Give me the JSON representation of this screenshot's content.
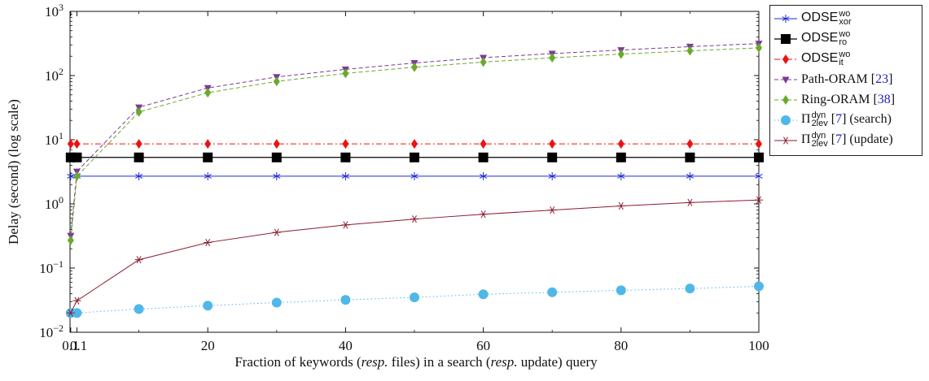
{
  "chart_data": {
    "type": "line",
    "title": "",
    "xlabel": {
      "pre": "Fraction of keywords (",
      "it1": "resp.",
      "mid": " files) in a search (",
      "it2": "resp.",
      "post": " update) query"
    },
    "ylabel": "Delay (second) (log scale)",
    "yscale": "log",
    "ylim": [
      0.01,
      1000
    ],
    "xlim": [
      0,
      100
    ],
    "x_ticks": [
      {
        "value": 0.1,
        "label": "0.1"
      },
      {
        "value": 20,
        "label": "20"
      },
      {
        "value": 40,
        "label": "40"
      },
      {
        "value": 60,
        "label": "60"
      },
      {
        "value": 80,
        "label": "80"
      },
      {
        "value": 100,
        "label": "100"
      }
    ],
    "x_tick_extra": {
      "value": 1,
      "label": "0.1"
    },
    "y_ticks": [
      {
        "value": 0.01,
        "base": "10",
        "exp": "−2"
      },
      {
        "value": 0.1,
        "base": "10",
        "exp": "−1"
      },
      {
        "value": 1,
        "base": "10",
        "exp": "0"
      },
      {
        "value": 10,
        "base": "10",
        "exp": "1"
      },
      {
        "value": 100,
        "base": "10",
        "exp": "2"
      },
      {
        "value": 1000,
        "base": "10",
        "exp": "3"
      }
    ],
    "legend_position": "outside-right",
    "series": [
      {
        "key": "xor",
        "color": "#1f2bd6",
        "marker": "asterisk",
        "dash": "",
        "width": 1,
        "label": {
          "main": "ODSE",
          "sup": "wo",
          "sub": "xor"
        },
        "x": [
          0.1,
          1,
          10,
          20,
          30,
          40,
          50,
          60,
          70,
          80,
          90,
          100
        ],
        "y": [
          2.7,
          2.7,
          2.7,
          2.7,
          2.7,
          2.7,
          2.7,
          2.7,
          2.7,
          2.7,
          2.7,
          2.7
        ]
      },
      {
        "key": "ro",
        "color": "#000000",
        "marker": "square",
        "dash": "",
        "width": 1.3,
        "label": {
          "main": "ODSE",
          "sup": "wo",
          "sub": "ro"
        },
        "x": [
          0.1,
          1,
          10,
          20,
          30,
          40,
          50,
          60,
          70,
          80,
          90,
          100
        ],
        "y": [
          5.3,
          5.3,
          5.3,
          5.3,
          5.3,
          5.3,
          5.3,
          5.3,
          5.3,
          5.3,
          5.3,
          5.3
        ]
      },
      {
        "key": "it",
        "color": "#ee1111",
        "marker": "diamond",
        "dash": "7,3,2,3",
        "width": 1,
        "label": {
          "main": "ODSE",
          "sup": "wo",
          "sub": "it"
        },
        "x": [
          0.1,
          1,
          10,
          20,
          30,
          40,
          50,
          60,
          70,
          80,
          90,
          100
        ],
        "y": [
          8.6,
          8.6,
          8.6,
          8.6,
          8.6,
          8.6,
          8.6,
          8.6,
          8.6,
          8.6,
          8.6,
          8.6
        ]
      },
      {
        "key": "path",
        "color": "#7b3a96",
        "marker": "triangle-down",
        "dash": "5,3",
        "width": 1,
        "label": {
          "main": "Path-ORAM [",
          "cite": "23",
          "post": "]"
        },
        "x": [
          0.1,
          1,
          10,
          20,
          30,
          40,
          50,
          60,
          70,
          80,
          90,
          100
        ],
        "y": [
          0.32,
          3.2,
          32,
          64,
          95,
          125,
          157,
          190,
          220,
          250,
          282,
          315
        ]
      },
      {
        "key": "ring",
        "color": "#6aaa2a",
        "marker": "diamond",
        "dash": "5,3",
        "width": 1,
        "label": {
          "main": "Ring-ORAM [",
          "cite": "38",
          "post": "]"
        },
        "x": [
          0.1,
          1,
          10,
          20,
          30,
          40,
          50,
          60,
          70,
          80,
          90,
          100
        ],
        "y": [
          0.27,
          2.7,
          27,
          54,
          81,
          108,
          135,
          162,
          189,
          216,
          243,
          270
        ]
      },
      {
        "key": "pi_search",
        "color": "#4fb8e8",
        "marker": "circle",
        "dash": "1.5,3",
        "width": 1,
        "label": {
          "main": "Π",
          "sup": "dyn",
          "sub": "2lev",
          "cite": "7",
          "post": " (search)"
        },
        "x": [
          0.1,
          1,
          10,
          20,
          30,
          40,
          50,
          60,
          70,
          80,
          90,
          100
        ],
        "y": [
          0.02,
          0.02,
          0.023,
          0.026,
          0.029,
          0.032,
          0.035,
          0.039,
          0.042,
          0.045,
          0.048,
          0.052
        ]
      },
      {
        "key": "pi_update",
        "color": "#8b1a2e",
        "marker": "star",
        "dash": "",
        "width": 1,
        "label": {
          "main": "Π",
          "sup": "dyn",
          "sub": "2lev",
          "cite": "7",
          "post": " (update)"
        },
        "x": [
          0.1,
          1,
          10,
          20,
          30,
          40,
          50,
          60,
          70,
          80,
          90,
          100
        ],
        "y": [
          0.02,
          0.031,
          0.135,
          0.25,
          0.36,
          0.47,
          0.58,
          0.69,
          0.8,
          0.93,
          1.05,
          1.15
        ]
      }
    ]
  }
}
